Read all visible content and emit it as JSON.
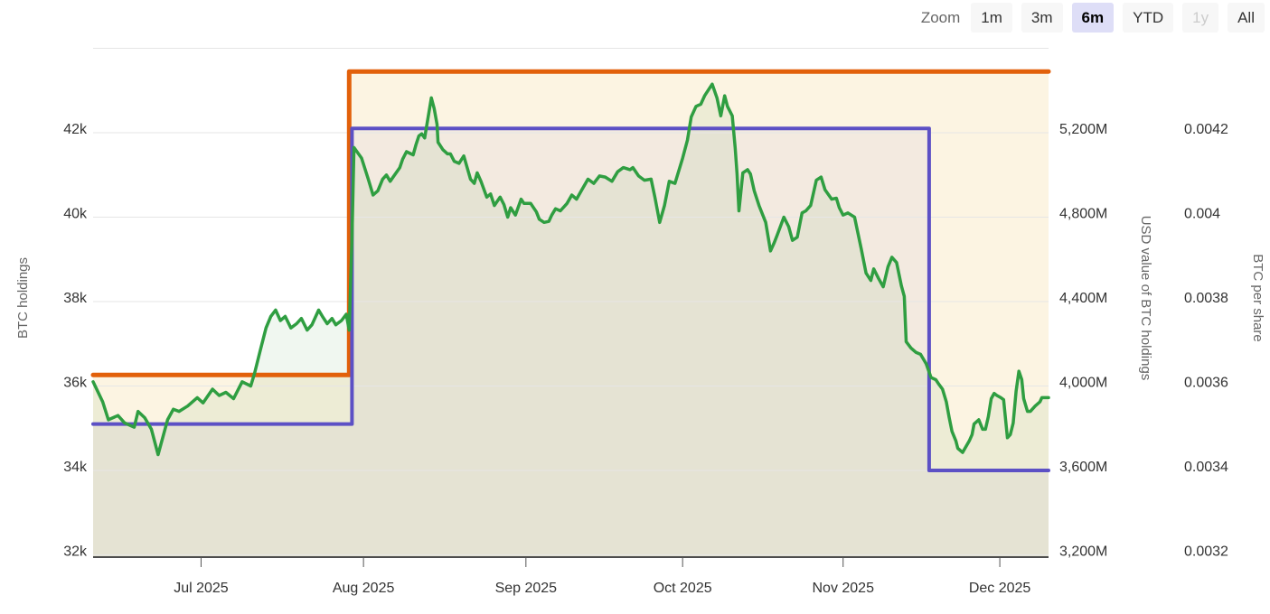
{
  "toolbar": {
    "zoom_label": "Zoom",
    "buttons": [
      {
        "label": "1m",
        "state": "normal"
      },
      {
        "label": "3m",
        "state": "normal"
      },
      {
        "label": "6m",
        "state": "active"
      },
      {
        "label": "YTD",
        "state": "normal"
      },
      {
        "label": "1y",
        "state": "disabled"
      },
      {
        "label": "All",
        "state": "normal"
      }
    ]
  },
  "chart_data": {
    "type": "area",
    "grid": "horizontal-only",
    "x_axis": {
      "range_note": "approx 2025-06-10 to 2025-12-10 (6m zoom)",
      "ticks": [
        {
          "label": "Jul 2025",
          "f": 0.113
        },
        {
          "label": "Aug 2025",
          "f": 0.283
        },
        {
          "label": "Sep 2025",
          "f": 0.453
        },
        {
          "label": "Oct 2025",
          "f": 0.617
        },
        {
          "label": "Nov 2025",
          "f": 0.785
        },
        {
          "label": "Dec 2025",
          "f": 0.949
        }
      ]
    },
    "y_axes": [
      {
        "id": "btc",
        "title": "BTC holdings",
        "side": "left",
        "ticks_top_down": [
          "42k",
          "40k",
          "38k",
          "36k",
          "34k",
          "32k"
        ]
      },
      {
        "id": "usd",
        "title": "USD value of BTC holdings",
        "side": "right",
        "ticks_top_down": [
          "5,200M",
          "4,800M",
          "4,400M",
          "4,000M",
          "3,600M",
          "3,200M"
        ]
      },
      {
        "id": "share",
        "title": "BTC per share",
        "side": "right-outer",
        "ticks_top_down": [
          "0.0042",
          "0.004",
          "0.0038",
          "0.0036",
          "0.0034",
          "0.0032"
        ]
      }
    ],
    "series": [
      {
        "name": "BTC holdings",
        "axis": "btc",
        "shape": "step",
        "color": "#e2600a",
        "width": 5,
        "fill": "#fcf4e2",
        "points": [
          [
            0,
            36260
          ],
          [
            0.268,
            36260
          ],
          [
            0.268,
            43450
          ],
          [
            1,
            43450
          ]
        ]
      },
      {
        "name": "BTC per share",
        "axis": "share",
        "shape": "step",
        "color": "#5c50c5",
        "width": 4,
        "fill": "rgba(91,80,195,0.055)",
        "points": [
          [
            0,
            0.00351
          ],
          [
            0.271,
            0.00351
          ],
          [
            0.271,
            0.00421
          ],
          [
            0.875,
            0.00421
          ],
          [
            0.875,
            0.0034
          ],
          [
            1,
            0.0034
          ]
        ]
      },
      {
        "name": "USD value of BTC holdings",
        "axis": "usd",
        "shape": "line",
        "color": "#2f9e41",
        "width": 3.5,
        "fill": "rgba(70,150,60,0.08)",
        "points": [
          [
            0.0,
            4020
          ],
          [
            0.01,
            3925
          ],
          [
            0.016,
            3840
          ],
          [
            0.026,
            3860
          ],
          [
            0.033,
            3825
          ],
          [
            0.043,
            3805
          ],
          [
            0.047,
            3880
          ],
          [
            0.054,
            3850
          ],
          [
            0.061,
            3795
          ],
          [
            0.068,
            3675
          ],
          [
            0.078,
            3840
          ],
          [
            0.084,
            3890
          ],
          [
            0.09,
            3880
          ],
          [
            0.099,
            3905
          ],
          [
            0.109,
            3945
          ],
          [
            0.115,
            3920
          ],
          [
            0.125,
            3985
          ],
          [
            0.132,
            3955
          ],
          [
            0.139,
            3970
          ],
          [
            0.147,
            3940
          ],
          [
            0.156,
            4020
          ],
          [
            0.165,
            4000
          ],
          [
            0.169,
            4060
          ],
          [
            0.175,
            4170
          ],
          [
            0.181,
            4275
          ],
          [
            0.186,
            4330
          ],
          [
            0.191,
            4360
          ],
          [
            0.196,
            4310
          ],
          [
            0.201,
            4330
          ],
          [
            0.207,
            4275
          ],
          [
            0.213,
            4295
          ],
          [
            0.218,
            4320
          ],
          [
            0.224,
            4265
          ],
          [
            0.229,
            4290
          ],
          [
            0.236,
            4360
          ],
          [
            0.24,
            4330
          ],
          [
            0.245,
            4295
          ],
          [
            0.25,
            4320
          ],
          [
            0.254,
            4290
          ],
          [
            0.26,
            4310
          ],
          [
            0.265,
            4340
          ],
          [
            0.268,
            4265
          ],
          [
            0.271,
            4700
          ],
          [
            0.273,
            5130
          ],
          [
            0.281,
            5080
          ],
          [
            0.288,
            4980
          ],
          [
            0.293,
            4905
          ],
          [
            0.298,
            4925
          ],
          [
            0.303,
            4980
          ],
          [
            0.307,
            5000
          ],
          [
            0.311,
            4970
          ],
          [
            0.314,
            4990
          ],
          [
            0.321,
            5035
          ],
          [
            0.324,
            5075
          ],
          [
            0.328,
            5110
          ],
          [
            0.335,
            5095
          ],
          [
            0.338,
            5145
          ],
          [
            0.341,
            5185
          ],
          [
            0.344,
            5195
          ],
          [
            0.347,
            5175
          ],
          [
            0.354,
            5365
          ],
          [
            0.357,
            5315
          ],
          [
            0.36,
            5240
          ],
          [
            0.361,
            5155
          ],
          [
            0.366,
            5120
          ],
          [
            0.371,
            5100
          ],
          [
            0.374,
            5100
          ],
          [
            0.378,
            5065
          ],
          [
            0.383,
            5055
          ],
          [
            0.388,
            5090
          ],
          [
            0.395,
            4980
          ],
          [
            0.399,
            4960
          ],
          [
            0.402,
            5010
          ],
          [
            0.406,
            4970
          ],
          [
            0.412,
            4895
          ],
          [
            0.416,
            4910
          ],
          [
            0.42,
            4855
          ],
          [
            0.426,
            4895
          ],
          [
            0.43,
            4860
          ],
          [
            0.434,
            4800
          ],
          [
            0.437,
            4845
          ],
          [
            0.442,
            4810
          ],
          [
            0.448,
            4885
          ],
          [
            0.451,
            4865
          ],
          [
            0.458,
            4865
          ],
          [
            0.464,
            4825
          ],
          [
            0.467,
            4790
          ],
          [
            0.472,
            4775
          ],
          [
            0.477,
            4780
          ],
          [
            0.48,
            4810
          ],
          [
            0.484,
            4840
          ],
          [
            0.489,
            4830
          ],
          [
            0.496,
            4865
          ],
          [
            0.501,
            4905
          ],
          [
            0.506,
            4885
          ],
          [
            0.511,
            4925
          ],
          [
            0.518,
            4980
          ],
          [
            0.524,
            4960
          ],
          [
            0.53,
            4995
          ],
          [
            0.536,
            4990
          ],
          [
            0.543,
            4970
          ],
          [
            0.549,
            5015
          ],
          [
            0.555,
            5035
          ],
          [
            0.562,
            5025
          ],
          [
            0.565,
            5035
          ],
          [
            0.571,
            4995
          ],
          [
            0.577,
            4975
          ],
          [
            0.584,
            4980
          ],
          [
            0.588,
            4895
          ],
          [
            0.593,
            4775
          ],
          [
            0.598,
            4855
          ],
          [
            0.603,
            4970
          ],
          [
            0.609,
            4960
          ],
          [
            0.617,
            5080
          ],
          [
            0.622,
            5165
          ],
          [
            0.626,
            5275
          ],
          [
            0.631,
            5325
          ],
          [
            0.636,
            5335
          ],
          [
            0.64,
            5375
          ],
          [
            0.648,
            5430
          ],
          [
            0.653,
            5365
          ],
          [
            0.657,
            5280
          ],
          [
            0.661,
            5375
          ],
          [
            0.664,
            5325
          ],
          [
            0.669,
            5280
          ],
          [
            0.672,
            5130
          ],
          [
            0.674,
            5005
          ],
          [
            0.676,
            4830
          ],
          [
            0.68,
            5010
          ],
          [
            0.685,
            5025
          ],
          [
            0.688,
            5005
          ],
          [
            0.692,
            4925
          ],
          [
            0.697,
            4855
          ],
          [
            0.704,
            4775
          ],
          [
            0.709,
            4640
          ],
          [
            0.713,
            4680
          ],
          [
            0.716,
            4715
          ],
          [
            0.723,
            4800
          ],
          [
            0.728,
            4755
          ],
          [
            0.732,
            4690
          ],
          [
            0.737,
            4705
          ],
          [
            0.742,
            4820
          ],
          [
            0.746,
            4830
          ],
          [
            0.751,
            4855
          ],
          [
            0.757,
            4975
          ],
          [
            0.762,
            4990
          ],
          [
            0.766,
            4930
          ],
          [
            0.773,
            4885
          ],
          [
            0.778,
            4890
          ],
          [
            0.781,
            4845
          ],
          [
            0.785,
            4810
          ],
          [
            0.79,
            4820
          ],
          [
            0.797,
            4800
          ],
          [
            0.804,
            4650
          ],
          [
            0.809,
            4535
          ],
          [
            0.814,
            4500
          ],
          [
            0.817,
            4555
          ],
          [
            0.822,
            4510
          ],
          [
            0.827,
            4470
          ],
          [
            0.832,
            4565
          ],
          [
            0.836,
            4610
          ],
          [
            0.841,
            4585
          ],
          [
            0.846,
            4475
          ],
          [
            0.849,
            4425
          ],
          [
            0.851,
            4210
          ],
          [
            0.856,
            4180
          ],
          [
            0.861,
            4160
          ],
          [
            0.866,
            4150
          ],
          [
            0.872,
            4105
          ],
          [
            0.877,
            4040
          ],
          [
            0.882,
            4030
          ],
          [
            0.885,
            4010
          ],
          [
            0.889,
            3985
          ],
          [
            0.893,
            3925
          ],
          [
            0.896,
            3850
          ],
          [
            0.899,
            3785
          ],
          [
            0.903,
            3740
          ],
          [
            0.905,
            3705
          ],
          [
            0.91,
            3685
          ],
          [
            0.917,
            3740
          ],
          [
            0.92,
            3770
          ],
          [
            0.922,
            3820
          ],
          [
            0.927,
            3840
          ],
          [
            0.931,
            3795
          ],
          [
            0.934,
            3795
          ],
          [
            0.937,
            3855
          ],
          [
            0.94,
            3940
          ],
          [
            0.943,
            3965
          ],
          [
            0.946,
            3955
          ],
          [
            0.95,
            3945
          ],
          [
            0.953,
            3935
          ],
          [
            0.957,
            3755
          ],
          [
            0.96,
            3770
          ],
          [
            0.963,
            3825
          ],
          [
            0.966,
            3975
          ],
          [
            0.969,
            4070
          ],
          [
            0.972,
            4030
          ],
          [
            0.974,
            3940
          ],
          [
            0.978,
            3880
          ],
          [
            0.981,
            3880
          ],
          [
            0.986,
            3905
          ],
          [
            0.991,
            3925
          ],
          [
            0.993,
            3945
          ],
          [
            1.0,
            3945
          ]
        ]
      }
    ]
  }
}
